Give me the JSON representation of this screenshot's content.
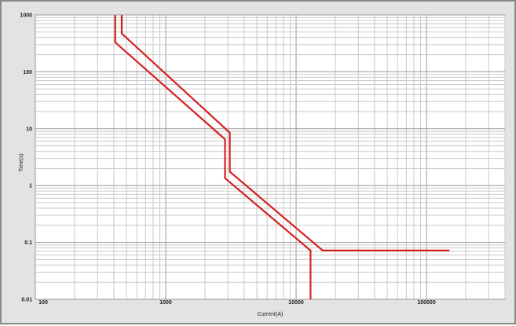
{
  "chart_data": {
    "type": "line",
    "xlabel": "Current(A)",
    "ylabel": "Time(s)",
    "x_scale": "log",
    "y_scale": "log",
    "xlim": [
      100,
      400000
    ],
    "ylim": [
      0.01,
      1000
    ],
    "grid": true,
    "x_ticks": [
      {
        "value": 100,
        "label": "100"
      },
      {
        "value": 1000,
        "label": "1000"
      },
      {
        "value": 10000,
        "label": "10000"
      },
      {
        "value": 100000,
        "label": "100000"
      }
    ],
    "y_ticks": [
      {
        "value": 1000,
        "label": "1000"
      },
      {
        "value": 100,
        "label": "100"
      },
      {
        "value": 10,
        "label": "10"
      },
      {
        "value": 1,
        "label": "1"
      },
      {
        "value": 0.1,
        "label": "0.1"
      },
      {
        "value": 0.01,
        "label": "0.01"
      }
    ],
    "series": [
      {
        "color": "#d62020",
        "points": [
          [
            410,
            1000
          ],
          [
            410,
            330
          ],
          [
            2850,
            6.5
          ],
          [
            2850,
            1.35
          ],
          [
            12900,
            0.072
          ],
          [
            12900,
            0.01
          ]
        ]
      },
      {
        "color": "#d62020",
        "points": [
          [
            460,
            1000
          ],
          [
            460,
            470
          ],
          [
            3100,
            8.5
          ],
          [
            3100,
            1.75
          ],
          [
            16000,
            0.072
          ],
          [
            150000,
            0.072
          ]
        ]
      }
    ]
  }
}
